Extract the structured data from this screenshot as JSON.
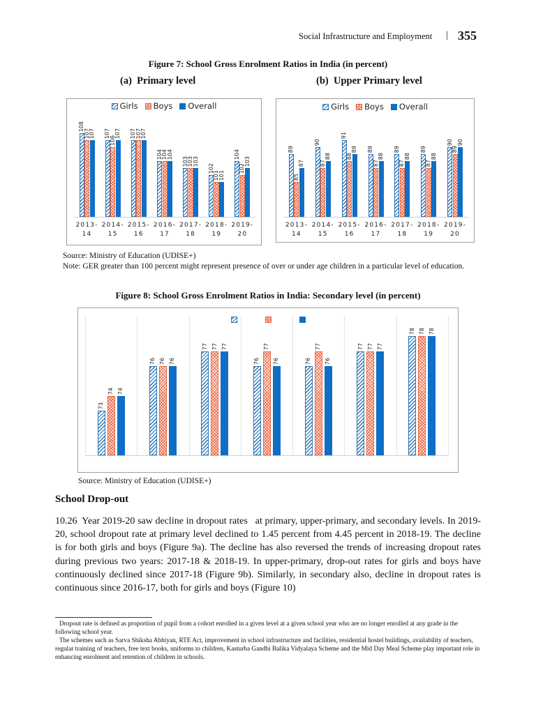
{
  "header": {
    "section": "Social Infrastructure and Employment",
    "page": "355"
  },
  "figure7": {
    "title": "Figure 7: School Gross Enrolment Ratios  in India (in percent)",
    "source": "Source: Ministry of Education (UDISE+)",
    "note": "Note: GER greater than 100 percent might represent presence of over or under age children in a particular level of education."
  },
  "figure8": {
    "title": "Figure 8: School Gross Enrolment Ratios in India: Secondary level (in percent)",
    "source": "Source: Ministry of Education (UDISE+)"
  },
  "chart_data": [
    {
      "type": "bar",
      "title": "(a)  Primary level",
      "categories": [
        "2013-14",
        "2014-15",
        "2015-16",
        "2016-17",
        "2017-18",
        "2018-19",
        "2019-20"
      ],
      "series": [
        {
          "name": "Girls",
          "color": "#2e75b6",
          "pattern": "diagonal",
          "values": [
            108,
            107,
            107,
            104,
            103,
            102,
            104
          ]
        },
        {
          "name": "Boys",
          "color": "#e8613c",
          "pattern": "cross",
          "values": [
            107,
            106,
            107,
            104,
            103,
            101,
            102
          ]
        },
        {
          "name": "Overall",
          "color": "#0f6fc6",
          "pattern": "solid",
          "values": [
            107,
            107,
            107,
            104,
            103,
            101,
            103
          ]
        }
      ],
      "ylim": [
        96,
        109
      ],
      "legend": "top"
    },
    {
      "type": "bar",
      "title": "(b)  Upper Primary level",
      "categories": [
        "2013-14",
        "2014-15",
        "2015-16",
        "2016-17",
        "2017-18",
        "2018-19",
        "2019-20"
      ],
      "series": [
        {
          "name": "Girls",
          "color": "#2e75b6",
          "pattern": "diagonal",
          "values": [
            89,
            90,
            91,
            89,
            89,
            89,
            90
          ]
        },
        {
          "name": "Boys",
          "color": "#e8613c",
          "pattern": "cross",
          "values": [
            85,
            87,
            88,
            87,
            87,
            87,
            89
          ]
        },
        {
          "name": "Overall",
          "color": "#0f6fc6",
          "pattern": "solid",
          "values": [
            87,
            88,
            89,
            88,
            88,
            88,
            90
          ]
        }
      ],
      "ylim": [
        80,
        92
      ],
      "legend": "top"
    },
    {
      "type": "bar",
      "categories": [
        null,
        null,
        null,
        null,
        null,
        null,
        null
      ],
      "series": [
        {
          "color": "#2e75b6",
          "pattern": "diagonal",
          "values": [
            73,
            76,
            77,
            76,
            76,
            77,
            78
          ]
        },
        {
          "color": "#e8613c",
          "pattern": "cross",
          "values": [
            74,
            76,
            77,
            77,
            77,
            77,
            78
          ]
        },
        {
          "color": "#0f6fc6",
          "pattern": "solid",
          "values": [
            74,
            76,
            77,
            76,
            76,
            77,
            78
          ]
        }
      ],
      "ylim": [
        70,
        79
      ],
      "legend": "top"
    }
  ],
  "section": {
    "heading": "School Drop-out",
    "paragraph": "10.26  Year 2019-20 saw decline in dropout rates   at primary, upper-primary, and secondary levels. In 2019-20, school dropout rate at primary level declined to 1.45 percent from 4.45 percent in 2018-19. The decline is for both girls and boys (Figure 9a). The decline has also reversed the trends of increasing dropout rates during previous two years: 2017-18 & 2018-19. In upper-primary, drop-out rates for girls and boys have continuously declined since 2017-18 (Figure 9b). Similarly, in secondary also, decline in dropout rates is continuous since 2016-17, both for girls and boys (Figure 10)"
  },
  "footnotes": [
    "Dropout rate is defined as proportion of pupil from a cohort enrolled in a given level at a given school year who are no longer enrolled at any grade in the following school year.",
    "The schemes such as Sarva Shiksha Abhiyan, RTE Act, improvement in school infrastructure and facilities, residential hostel buildings, availability of teachers, regular training of teachers, free text books, uniforms to children, Kasturba Gandhi Balika Vidyalaya Scheme and the Mid Day Meal Scheme play important role in enhancing enrolment and retention of children in schools."
  ]
}
